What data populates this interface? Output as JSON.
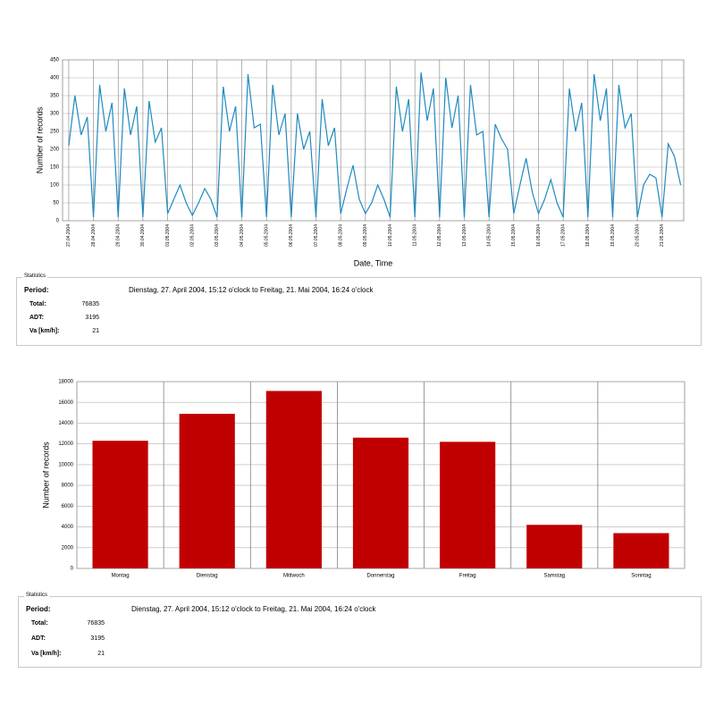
{
  "chart_data": [
    {
      "type": "line",
      "y_label": "Number of records",
      "x_label": "Date, Time",
      "color": "#1f8ac0",
      "ylim": [
        0,
        450
      ],
      "yticks": [
        0,
        50,
        100,
        150,
        200,
        250,
        300,
        350,
        400,
        450
      ],
      "grid": true,
      "categories": [
        "27.04.2004",
        null,
        null,
        null,
        "28.04.2004",
        null,
        null,
        null,
        "29.04.2004",
        null,
        null,
        null,
        "30.04.2004",
        null,
        null,
        null,
        "01.05.2004",
        null,
        null,
        null,
        "02.05.2004",
        null,
        null,
        null,
        "03.05.2004",
        null,
        null,
        null,
        "04.05.2004",
        null,
        null,
        null,
        "05.05.2004",
        null,
        null,
        null,
        "06.05.2004",
        null,
        null,
        null,
        "07.05.2004",
        null,
        null,
        null,
        "08.05.2004",
        null,
        null,
        null,
        "09.05.2004",
        null,
        null,
        null,
        "10.05.2004",
        null,
        null,
        null,
        "11.05.2004",
        null,
        null,
        null,
        "12.05.2004",
        null,
        null,
        null,
        "13.05.2004",
        null,
        null,
        null,
        "14.05.2004",
        null,
        null,
        null,
        "15.05.2004",
        null,
        null,
        null,
        "16.05.2004",
        null,
        null,
        null,
        "17.05.2004",
        null,
        null,
        null,
        "18.05.2004",
        null,
        null,
        null,
        "19.05.2004",
        null,
        null,
        null,
        "20.05.2004",
        null,
        null,
        null,
        "21.05.2004",
        null,
        null,
        null
      ],
      "values": [
        210,
        350,
        240,
        290,
        10,
        380,
        250,
        330,
        10,
        370,
        240,
        320,
        10,
        335,
        220,
        260,
        20,
        60,
        100,
        50,
        15,
        50,
        90,
        60,
        10,
        375,
        250,
        320,
        10,
        410,
        260,
        270,
        10,
        380,
        240,
        300,
        10,
        300,
        200,
        250,
        10,
        340,
        210,
        260,
        20,
        90,
        155,
        60,
        20,
        50,
        100,
        60,
        10,
        375,
        250,
        340,
        10,
        415,
        280,
        370,
        10,
        400,
        260,
        350,
        10,
        380,
        240,
        250,
        10,
        270,
        230,
        200,
        20,
        100,
        175,
        80,
        20,
        60,
        115,
        50,
        10,
        370,
        250,
        330,
        10,
        410,
        280,
        370,
        10,
        380,
        260,
        300,
        10,
        100,
        130,
        120,
        10,
        215,
        180,
        100
      ]
    },
    {
      "type": "bar",
      "y_label": "Number of records",
      "color": "#c00000",
      "ylim": [
        0,
        18000
      ],
      "yticks": [
        0,
        2000,
        4000,
        6000,
        8000,
        10000,
        12000,
        14000,
        16000,
        18000
      ],
      "grid": true,
      "categories": [
        "Montag",
        "Dienstag",
        "Mittwoch",
        "Donnerstag",
        "Freitag",
        "Samstag",
        "Sonntag"
      ],
      "values": [
        12300,
        14900,
        17100,
        12600,
        12200,
        4200,
        3400
      ]
    }
  ],
  "statistics": [
    {
      "legend": "Statistics",
      "period_label": "Period:",
      "period": "Dienstag, 27. April 2004, 15:12 o'clock to Freitag, 21. Mai 2004, 16:24 o'clock",
      "rows": [
        [
          "Total:",
          76835
        ],
        [
          "ADT:",
          3195
        ],
        [
          "Va [km/h]:",
          21
        ]
      ]
    },
    {
      "legend": "Statistics",
      "period_label": "Period:",
      "period": "Dienstag, 27. April 2004, 15:12 o'clock to Freitag, 21. Mai 2004, 16:24 o'clock",
      "rows": [
        [
          "Total:",
          76835
        ],
        [
          "ADT:",
          3195
        ],
        [
          "Va [km/h]:",
          21
        ]
      ]
    }
  ]
}
